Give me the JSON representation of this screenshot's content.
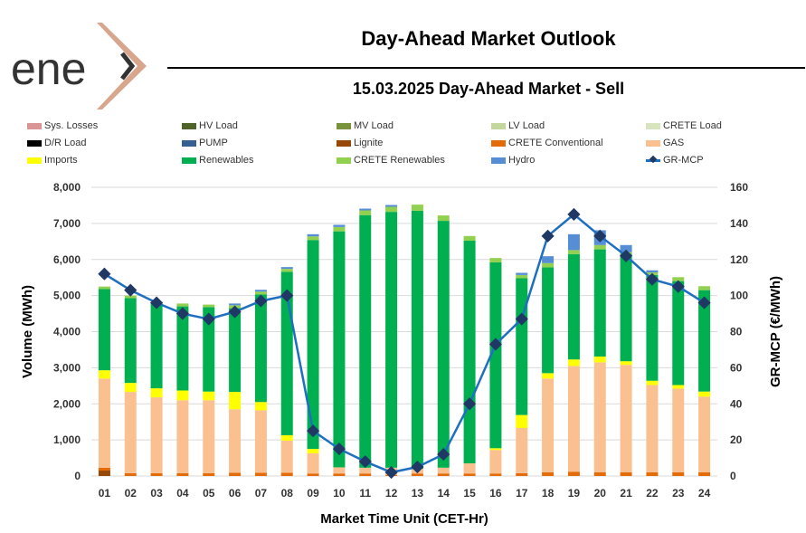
{
  "logo_text": "enex",
  "header": {
    "title": "Day-Ahead Market Outlook",
    "subtitle": "15.03.2025  Day-Ahead Market - Sell"
  },
  "legend": [
    {
      "label": "Sys. Losses",
      "color": "#d99594",
      "kind": "bar"
    },
    {
      "label": "HV Load",
      "color": "#4f6228",
      "kind": "bar"
    },
    {
      "label": "MV Load",
      "color": "#77933c",
      "kind": "bar"
    },
    {
      "label": "LV Load",
      "color": "#c3d69b",
      "kind": "bar"
    },
    {
      "label": "CRETE Load",
      "color": "#d7e4bd",
      "kind": "bar"
    },
    {
      "label": "D/R Load",
      "color": "#000000",
      "kind": "bar"
    },
    {
      "label": "PUMP",
      "color": "#366092",
      "kind": "bar"
    },
    {
      "label": "Lignite",
      "color": "#974706",
      "kind": "bar"
    },
    {
      "label": "CRETE Conventional",
      "color": "#e36c09",
      "kind": "bar"
    },
    {
      "label": "GAS",
      "color": "#fac090",
      "kind": "bar"
    },
    {
      "label": "Imports",
      "color": "#ffff00",
      "kind": "bar"
    },
    {
      "label": "Renewables",
      "color": "#00b050",
      "kind": "bar"
    },
    {
      "label": "CRETE Renewables",
      "color": "#92d050",
      "kind": "bar"
    },
    {
      "label": "Hydro",
      "color": "#558ed5",
      "kind": "bar"
    },
    {
      "label": "GR-MCP",
      "color": "#1f6fc0",
      "kind": "line"
    }
  ],
  "chart_data": {
    "type": "bar",
    "stacked": true,
    "xlabel": "Market Time Unit (CET-Hr)",
    "ylabel": "Volume (MWh)",
    "y2label": "GR-MCP (€/MWh)",
    "ylim": [
      0,
      8000
    ],
    "y2lim": [
      0,
      160
    ],
    "yticks": [
      "0",
      "1,000",
      "2,000",
      "3,000",
      "4,000",
      "5,000",
      "6,000",
      "7,000",
      "8,000"
    ],
    "y2ticks": [
      "0",
      "20",
      "40",
      "60",
      "80",
      "100",
      "120",
      "140",
      "160"
    ],
    "categories": [
      "01",
      "02",
      "03",
      "04",
      "05",
      "06",
      "07",
      "08",
      "09",
      "10",
      "11",
      "12",
      "13",
      "14",
      "15",
      "16",
      "17",
      "18",
      "19",
      "20",
      "21",
      "22",
      "23",
      "24"
    ],
    "series": [
      {
        "name": "Lignite",
        "color": "#974706",
        "values": [
          150,
          0,
          0,
          0,
          0,
          0,
          0,
          0,
          0,
          0,
          0,
          0,
          0,
          0,
          0,
          0,
          0,
          0,
          0,
          0,
          0,
          0,
          0,
          0
        ]
      },
      {
        "name": "CRETE Conventional",
        "color": "#e36c09",
        "values": [
          80,
          80,
          80,
          80,
          80,
          90,
          90,
          90,
          70,
          70,
          70,
          30,
          70,
          70,
          70,
          70,
          80,
          100,
          120,
          100,
          100,
          100,
          100,
          100
        ]
      },
      {
        "name": "GAS",
        "color": "#fac090",
        "values": [
          2470,
          2250,
          2100,
          2020,
          2020,
          1760,
          1730,
          890,
          560,
          170,
          160,
          200,
          130,
          160,
          280,
          650,
          1250,
          2600,
          2930,
          3050,
          2980,
          2420,
          2320,
          2100
        ]
      },
      {
        "name": "Imports",
        "color": "#ffff00",
        "values": [
          230,
          250,
          250,
          270,
          240,
          480,
          230,
          150,
          120,
          0,
          0,
          0,
          0,
          0,
          0,
          50,
          360,
          150,
          180,
          160,
          100,
          120,
          100,
          140
        ]
      },
      {
        "name": "Renewables",
        "color": "#00b050",
        "values": [
          2250,
          2350,
          2390,
          2330,
          2340,
          2320,
          2980,
          4530,
          5790,
          6540,
          7000,
          7090,
          7150,
          6840,
          6170,
          5150,
          3790,
          2930,
          2920,
          2970,
          2980,
          2930,
          2880,
          2810
        ]
      },
      {
        "name": "CRETE Renewables",
        "color": "#92d050",
        "values": [
          70,
          70,
          10,
          80,
          70,
          80,
          80,
          80,
          100,
          120,
          130,
          140,
          170,
          150,
          130,
          120,
          90,
          120,
          110,
          120,
          40,
          70,
          110,
          110
        ]
      },
      {
        "name": "Hydro",
        "color": "#558ed5",
        "values": [
          0,
          0,
          0,
          0,
          0,
          50,
          50,
          50,
          60,
          60,
          50,
          50,
          0,
          0,
          0,
          0,
          60,
          190,
          440,
          410,
          200,
          60,
          0,
          0
        ]
      }
    ],
    "line": {
      "name": "GR-MCP",
      "color": "#1f6fc0",
      "marker_color": "#1f3864",
      "values": [
        112,
        103,
        96,
        90,
        87,
        91,
        97,
        100,
        25,
        15,
        8,
        2,
        5,
        12,
        40,
        73,
        87,
        133,
        145,
        133,
        122,
        109,
        105,
        96
      ]
    },
    "grid": true,
    "legend_position": "top"
  }
}
